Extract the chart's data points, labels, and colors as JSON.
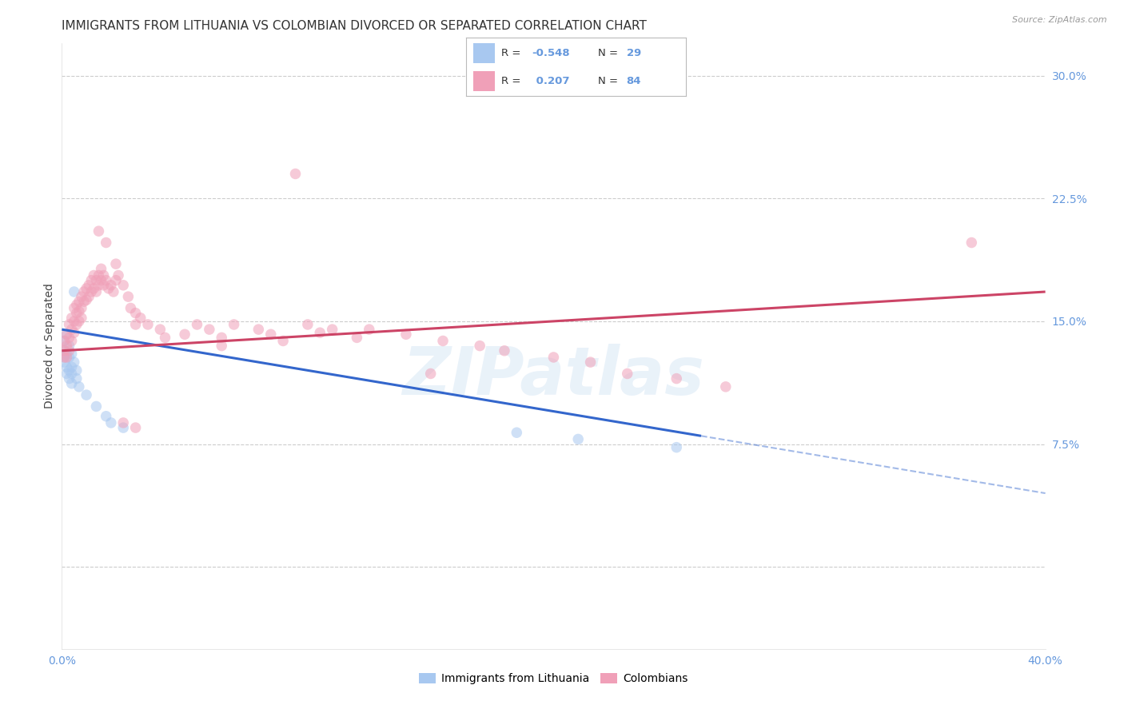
{
  "title": "IMMIGRANTS FROM LITHUANIA VS COLOMBIAN DIVORCED OR SEPARATED CORRELATION CHART",
  "source": "Source: ZipAtlas.com",
  "ylabel": "Divorced or Separated",
  "legend_label_blue": "Immigrants from Lithuania",
  "legend_label_pink": "Colombians",
  "blue_color": "#A8C8F0",
  "pink_color": "#F0A0B8",
  "blue_line_color": "#3366CC",
  "pink_line_color": "#CC4466",
  "blue_scatter": [
    [
      0.001,
      0.138
    ],
    [
      0.001,
      0.132
    ],
    [
      0.001,
      0.128
    ],
    [
      0.001,
      0.125
    ],
    [
      0.002,
      0.142
    ],
    [
      0.002,
      0.13
    ],
    [
      0.002,
      0.122
    ],
    [
      0.002,
      0.118
    ],
    [
      0.003,
      0.135
    ],
    [
      0.003,
      0.128
    ],
    [
      0.003,
      0.12
    ],
    [
      0.003,
      0.115
    ],
    [
      0.004,
      0.13
    ],
    [
      0.004,
      0.122
    ],
    [
      0.004,
      0.118
    ],
    [
      0.004,
      0.112
    ],
    [
      0.005,
      0.168
    ],
    [
      0.005,
      0.125
    ],
    [
      0.006,
      0.12
    ],
    [
      0.006,
      0.115
    ],
    [
      0.007,
      0.11
    ],
    [
      0.01,
      0.105
    ],
    [
      0.014,
      0.098
    ],
    [
      0.018,
      0.092
    ],
    [
      0.02,
      0.088
    ],
    [
      0.025,
      0.085
    ],
    [
      0.185,
      0.082
    ],
    [
      0.21,
      0.078
    ],
    [
      0.25,
      0.073
    ]
  ],
  "pink_scatter": [
    [
      0.001,
      0.138
    ],
    [
      0.001,
      0.132
    ],
    [
      0.001,
      0.128
    ],
    [
      0.002,
      0.142
    ],
    [
      0.002,
      0.135
    ],
    [
      0.002,
      0.128
    ],
    [
      0.003,
      0.148
    ],
    [
      0.003,
      0.14
    ],
    [
      0.003,
      0.132
    ],
    [
      0.004,
      0.152
    ],
    [
      0.004,
      0.145
    ],
    [
      0.004,
      0.138
    ],
    [
      0.005,
      0.158
    ],
    [
      0.005,
      0.15
    ],
    [
      0.005,
      0.143
    ],
    [
      0.006,
      0.16
    ],
    [
      0.006,
      0.155
    ],
    [
      0.006,
      0.148
    ],
    [
      0.007,
      0.162
    ],
    [
      0.007,
      0.156
    ],
    [
      0.007,
      0.15
    ],
    [
      0.008,
      0.165
    ],
    [
      0.008,
      0.158
    ],
    [
      0.008,
      0.152
    ],
    [
      0.009,
      0.168
    ],
    [
      0.009,
      0.162
    ],
    [
      0.01,
      0.17
    ],
    [
      0.01,
      0.163
    ],
    [
      0.011,
      0.172
    ],
    [
      0.011,
      0.165
    ],
    [
      0.012,
      0.175
    ],
    [
      0.012,
      0.168
    ],
    [
      0.013,
      0.178
    ],
    [
      0.013,
      0.17
    ],
    [
      0.014,
      0.175
    ],
    [
      0.014,
      0.168
    ],
    [
      0.015,
      0.178
    ],
    [
      0.015,
      0.172
    ],
    [
      0.016,
      0.182
    ],
    [
      0.016,
      0.175
    ],
    [
      0.017,
      0.178
    ],
    [
      0.017,
      0.172
    ],
    [
      0.018,
      0.175
    ],
    [
      0.019,
      0.17
    ],
    [
      0.02,
      0.172
    ],
    [
      0.021,
      0.168
    ],
    [
      0.022,
      0.185
    ],
    [
      0.022,
      0.175
    ],
    [
      0.023,
      0.178
    ],
    [
      0.025,
      0.172
    ],
    [
      0.027,
      0.165
    ],
    [
      0.028,
      0.158
    ],
    [
      0.03,
      0.155
    ],
    [
      0.03,
      0.148
    ],
    [
      0.032,
      0.152
    ],
    [
      0.035,
      0.148
    ],
    [
      0.04,
      0.145
    ],
    [
      0.042,
      0.14
    ],
    [
      0.05,
      0.142
    ],
    [
      0.055,
      0.148
    ],
    [
      0.06,
      0.145
    ],
    [
      0.065,
      0.14
    ],
    [
      0.07,
      0.148
    ],
    [
      0.08,
      0.145
    ],
    [
      0.085,
      0.142
    ],
    [
      0.09,
      0.138
    ],
    [
      0.1,
      0.148
    ],
    [
      0.105,
      0.143
    ],
    [
      0.11,
      0.145
    ],
    [
      0.12,
      0.14
    ],
    [
      0.125,
      0.145
    ],
    [
      0.14,
      0.142
    ],
    [
      0.155,
      0.138
    ],
    [
      0.17,
      0.135
    ],
    [
      0.18,
      0.132
    ],
    [
      0.2,
      0.128
    ],
    [
      0.215,
      0.125
    ],
    [
      0.23,
      0.118
    ],
    [
      0.25,
      0.115
    ],
    [
      0.27,
      0.11
    ],
    [
      0.025,
      0.088
    ],
    [
      0.03,
      0.085
    ],
    [
      0.095,
      0.24
    ],
    [
      0.37,
      0.198
    ],
    [
      0.015,
      0.205
    ],
    [
      0.018,
      0.198
    ],
    [
      0.065,
      0.135
    ],
    [
      0.15,
      0.118
    ]
  ],
  "blue_trend_solid": {
    "x_start": 0.0,
    "x_end": 0.26,
    "y_start": 0.145,
    "y_end": 0.08
  },
  "blue_trend_dashed": {
    "x_start": 0.26,
    "x_end": 0.4,
    "y_start": 0.08,
    "y_end": 0.045
  },
  "pink_trend": {
    "x_start": 0.0,
    "x_end": 0.4,
    "y_start": 0.132,
    "y_end": 0.168
  },
  "xlim": [
    0.0,
    0.4
  ],
  "ylim": [
    -0.05,
    0.32
  ],
  "ytick_positions": [
    0.0,
    0.075,
    0.15,
    0.225,
    0.3
  ],
  "ytick_labels": [
    "",
    "7.5%",
    "15.0%",
    "22.5%",
    "30.0%"
  ],
  "xtick_positions": [
    0.0,
    0.4
  ],
  "xtick_labels": [
    "0.0%",
    "40.0%"
  ],
  "watermark": "ZIPatlas",
  "background_color": "#FFFFFF",
  "grid_color": "#CCCCCC",
  "title_fontsize": 11,
  "axis_label_fontsize": 10,
  "tick_fontsize": 10,
  "marker_size": 95,
  "marker_alpha": 0.55,
  "tick_color": "#6699DD"
}
